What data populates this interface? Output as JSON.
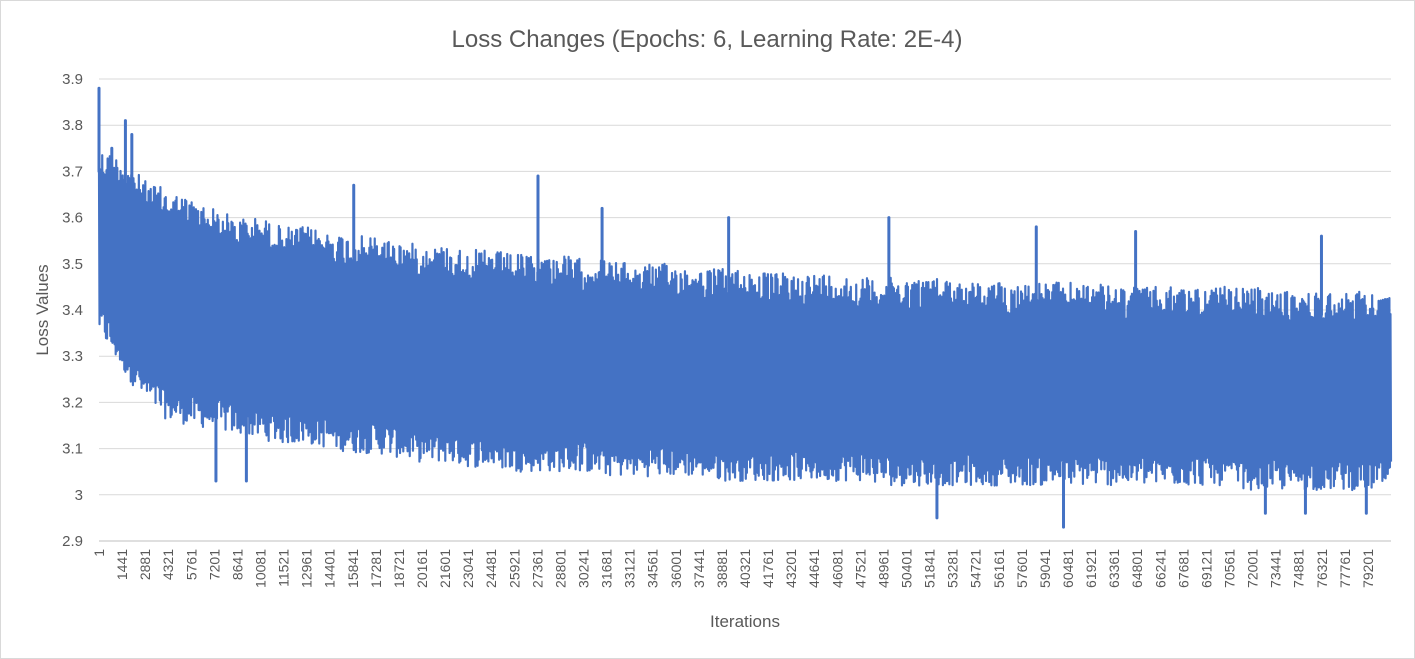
{
  "chart_data": {
    "type": "line",
    "title": "Loss Changes (Epochs: 6, Learning Rate: 2E-4)",
    "xlabel": "Iterations",
    "ylabel": "Loss Values",
    "ylim": [
      2.9,
      3.9
    ],
    "y_ticks": [
      "2.9",
      "3",
      "3.1",
      "3.2",
      "3.3",
      "3.4",
      "3.5",
      "3.6",
      "3.7",
      "3.8",
      "3.9"
    ],
    "x_ticks": [
      "1",
      "1441",
      "2881",
      "4321",
      "5761",
      "7201",
      "8641",
      "10081",
      "11521",
      "12961",
      "14401",
      "15841",
      "17281",
      "18721",
      "20161",
      "21601",
      "23041",
      "24481",
      "25921",
      "27361",
      "28801",
      "30241",
      "31681",
      "33121",
      "34561",
      "36001",
      "37441",
      "38881",
      "40321",
      "41761",
      "43201",
      "44641",
      "46081",
      "47521",
      "48961",
      "50401",
      "51841",
      "53281",
      "54721",
      "56161",
      "57601",
      "59041",
      "60481",
      "61921",
      "63361",
      "64801",
      "66241",
      "67681",
      "69121",
      "70561",
      "72001",
      "73441",
      "74881",
      "76321",
      "77761",
      "79201"
    ],
    "x_range": [
      1,
      80640
    ],
    "grid": true,
    "legend": "none",
    "series": [
      {
        "color": "#4472c4",
        "envelope_x": [
          1,
          1441,
          2881,
          4321,
          5761,
          7201,
          8641,
          10081,
          11521,
          12961,
          14401,
          15841,
          17281,
          18721,
          20161,
          21601,
          23041,
          24481,
          25921,
          27361,
          28801,
          30241,
          31681,
          33121,
          34561,
          36001,
          37441,
          38881,
          40321,
          41761,
          43201,
          44641,
          46081,
          47521,
          48961,
          50401,
          51841,
          53281,
          54721,
          56161,
          57601,
          59041,
          60481,
          61921,
          63361,
          64801,
          66241,
          67681,
          69121,
          70561,
          72001,
          73441,
          74881,
          76321,
          77761,
          79201,
          80640
        ],
        "envelope_max": [
          3.75,
          3.73,
          3.68,
          3.66,
          3.64,
          3.62,
          3.6,
          3.6,
          3.58,
          3.58,
          3.57,
          3.56,
          3.56,
          3.55,
          3.54,
          3.54,
          3.53,
          3.53,
          3.52,
          3.52,
          3.52,
          3.51,
          3.51,
          3.5,
          3.5,
          3.5,
          3.49,
          3.49,
          3.49,
          3.48,
          3.48,
          3.48,
          3.48,
          3.47,
          3.47,
          3.47,
          3.47,
          3.47,
          3.46,
          3.46,
          3.46,
          3.46,
          3.46,
          3.46,
          3.45,
          3.45,
          3.45,
          3.45,
          3.45,
          3.45,
          3.45,
          3.44,
          3.44,
          3.44,
          3.44,
          3.44,
          3.43
        ],
        "envelope_min": [
          3.35,
          3.27,
          3.2,
          3.16,
          3.15,
          3.14,
          3.13,
          3.12,
          3.11,
          3.11,
          3.1,
          3.09,
          3.09,
          3.08,
          3.07,
          3.07,
          3.06,
          3.06,
          3.05,
          3.05,
          3.05,
          3.05,
          3.04,
          3.04,
          3.04,
          3.04,
          3.04,
          3.03,
          3.03,
          3.03,
          3.03,
          3.03,
          3.03,
          3.03,
          3.02,
          3.02,
          3.02,
          3.02,
          3.02,
          3.02,
          3.02,
          3.02,
          3.02,
          3.02,
          3.02,
          3.02,
          3.02,
          3.02,
          3.02,
          3.02,
          3.01,
          3.01,
          3.01,
          3.01,
          3.01,
          3.01,
          3.01
        ],
        "spikes": [
          {
            "x": 1,
            "y": 3.88
          },
          {
            "x": 1650,
            "y": 3.81
          },
          {
            "x": 2050,
            "y": 3.78
          },
          {
            "x": 800,
            "y": 3.75
          },
          {
            "x": 15900,
            "y": 3.67
          },
          {
            "x": 27400,
            "y": 3.69
          },
          {
            "x": 31400,
            "y": 3.62
          },
          {
            "x": 39300,
            "y": 3.6
          },
          {
            "x": 49300,
            "y": 3.6
          },
          {
            "x": 58500,
            "y": 3.58
          },
          {
            "x": 64700,
            "y": 3.57
          },
          {
            "x": 76300,
            "y": 3.56
          },
          {
            "x": 7300,
            "y": 3.03
          },
          {
            "x": 9200,
            "y": 3.03
          },
          {
            "x": 52300,
            "y": 2.95
          },
          {
            "x": 60200,
            "y": 2.93
          },
          {
            "x": 72800,
            "y": 2.96
          },
          {
            "x": 75300,
            "y": 2.96
          },
          {
            "x": 79100,
            "y": 2.96
          }
        ]
      }
    ]
  }
}
